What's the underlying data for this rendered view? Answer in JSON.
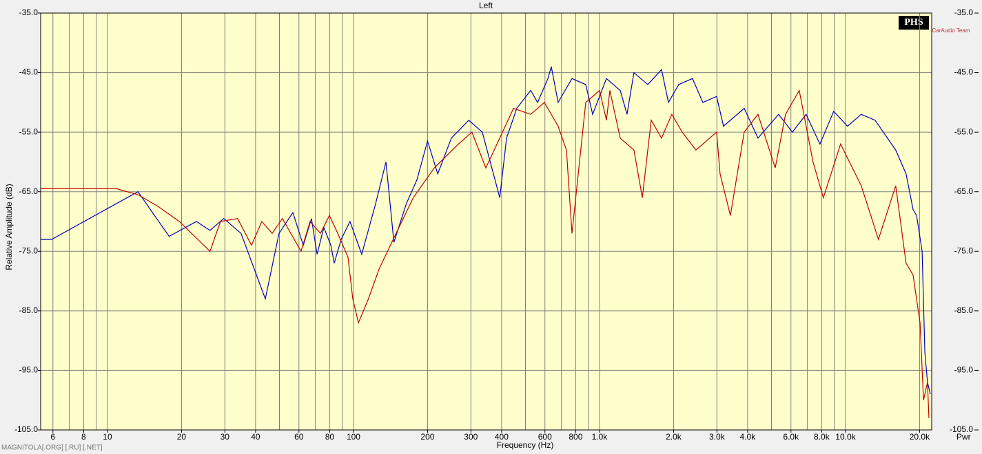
{
  "chart_data": {
    "type": "line",
    "title": "Left",
    "xlabel": "Frequency (Hz)",
    "ylabel": "Relative Amplitude (dB)",
    "y2label": "Pwr",
    "footer": "MAGNITOLA[.ORG] [.RU] [.NET]",
    "logo": "PHS",
    "logo_sub": "CarAudio Team",
    "xscale": "log",
    "grid": true,
    "xlim": [
      5.35,
      22400
    ],
    "ylim": [
      -105,
      -35
    ],
    "yticks": [
      {
        "value": -35,
        "label": "-35.0"
      },
      {
        "value": -45,
        "label": "-45.0"
      },
      {
        "value": -55,
        "label": "-55.0"
      },
      {
        "value": -65,
        "label": "-65.0"
      },
      {
        "value": -75,
        "label": "-75.0"
      },
      {
        "value": -85,
        "label": "-85.0"
      },
      {
        "value": -95,
        "label": "-95.0"
      },
      {
        "value": -105,
        "label": "-105.0"
      }
    ],
    "xticks": [
      6,
      8,
      10,
      20,
      30,
      40,
      60,
      80,
      100,
      200,
      300,
      400,
      600,
      800,
      {
        "value": 1000,
        "label": "1.0k"
      },
      {
        "value": 2000,
        "label": "2.0k"
      },
      {
        "value": 3000,
        "label": "3.0k"
      },
      {
        "value": 4000,
        "label": "4.0k"
      },
      {
        "value": 6000,
        "label": "6.0k"
      },
      {
        "value": 8000,
        "label": "8.0k"
      },
      {
        "value": 10000,
        "label": "10.0k"
      },
      {
        "value": 20000,
        "label": "20.0k"
      }
    ],
    "xgrid_minor": [
      7,
      9,
      50,
      70,
      90,
      500,
      700,
      900,
      5000,
      7000,
      9000
    ],
    "series": [
      {
        "color": "#0000c0",
        "x": [
          5.35,
          5.93,
          13.3,
          17.8,
          23,
          26.1,
          29.7,
          34.9,
          43.8,
          49.8,
          56.7,
          62.5,
          67.5,
          71.1,
          75.8,
          80.9,
          83.5,
          89.1,
          96.8,
          108,
          123,
          135.5,
          146,
          164,
          181,
          200,
          220,
          250,
          294,
          334,
          393,
          419,
          461,
          525,
          560,
          617,
          637,
          679,
          773,
          879,
          938,
          1067,
          1214,
          1294,
          1380,
          1571,
          1787,
          1906,
          2099,
          2388,
          2631,
          2993,
          3192,
          3873,
          4406,
          5346,
          6081,
          6918,
          7870,
          8954,
          10190,
          11590,
          13190,
          16000,
          17620,
          18820,
          19450,
          20480,
          21010,
          21540,
          22130
        ],
        "values": [
          -73,
          -73,
          -65,
          -72.5,
          -70,
          -71.5,
          -69.5,
          -72,
          -83,
          -72,
          -68.5,
          -74,
          -69.5,
          -75.5,
          -71,
          -74,
          -77,
          -73,
          -70,
          -75.5,
          -67,
          -60,
          -73.5,
          -67,
          -63,
          -56.5,
          -62,
          -56,
          -53,
          -55,
          -66,
          -56,
          -51,
          -48,
          -50,
          -46,
          -44,
          -50,
          -46,
          -47,
          -52,
          -46,
          -48,
          -52,
          -45,
          -47,
          -44.5,
          -50,
          -47,
          -46,
          -50,
          -49,
          -54,
          -51,
          -56,
          -52,
          -55,
          -52,
          -57,
          -51.5,
          -54,
          -52,
          -53,
          -58,
          -62,
          -68,
          -69,
          -75,
          -92,
          -97,
          -99
        ]
      },
      {
        "color": "#c00000",
        "x": [
          5.35,
          10.9,
          13.3,
          16.1,
          19.6,
          26.1,
          28.8,
          33.8,
          38.5,
          42.4,
          46.7,
          51.4,
          61.2,
          66.6,
          73.4,
          79.8,
          86.3,
          95,
          99.3,
          104.7,
          115,
          127,
          149,
          175,
          213,
          267,
          303,
          345,
          393,
          447,
          525,
          597,
          679,
          734,
          773,
          879,
          1000,
          1067,
          1102,
          1214,
          1380,
          1493,
          1622,
          1787,
          1968,
          2168,
          2466,
          2993,
          3090,
          3404,
          3873,
          4406,
          5176,
          5702,
          6486,
          7379,
          8128,
          9550,
          11590,
          13610,
          16000,
          17620,
          18820,
          20090,
          20750,
          21540,
          21830
        ],
        "values": [
          -64.5,
          -64.5,
          -65.5,
          -67.5,
          -70,
          -75,
          -70,
          -69.5,
          -74,
          -70,
          -72,
          -69.5,
          -75,
          -70,
          -72,
          -69,
          -72,
          -76,
          -83,
          -87,
          -83,
          -78,
          -72,
          -66,
          -61,
          -57,
          -55,
          -61,
          -56,
          -51,
          -52,
          -50,
          -54,
          -58,
          -72,
          -50,
          -48,
          -53,
          -48,
          -56,
          -58,
          -66,
          -53,
          -56,
          -52,
          -55,
          -58,
          -55,
          -62,
          -69,
          -55,
          -52,
          -61,
          -52,
          -48,
          -60,
          -66,
          -57,
          -64,
          -73,
          -64,
          -77,
          -79,
          -87,
          -100,
          -97,
          -103
        ]
      }
    ]
  }
}
